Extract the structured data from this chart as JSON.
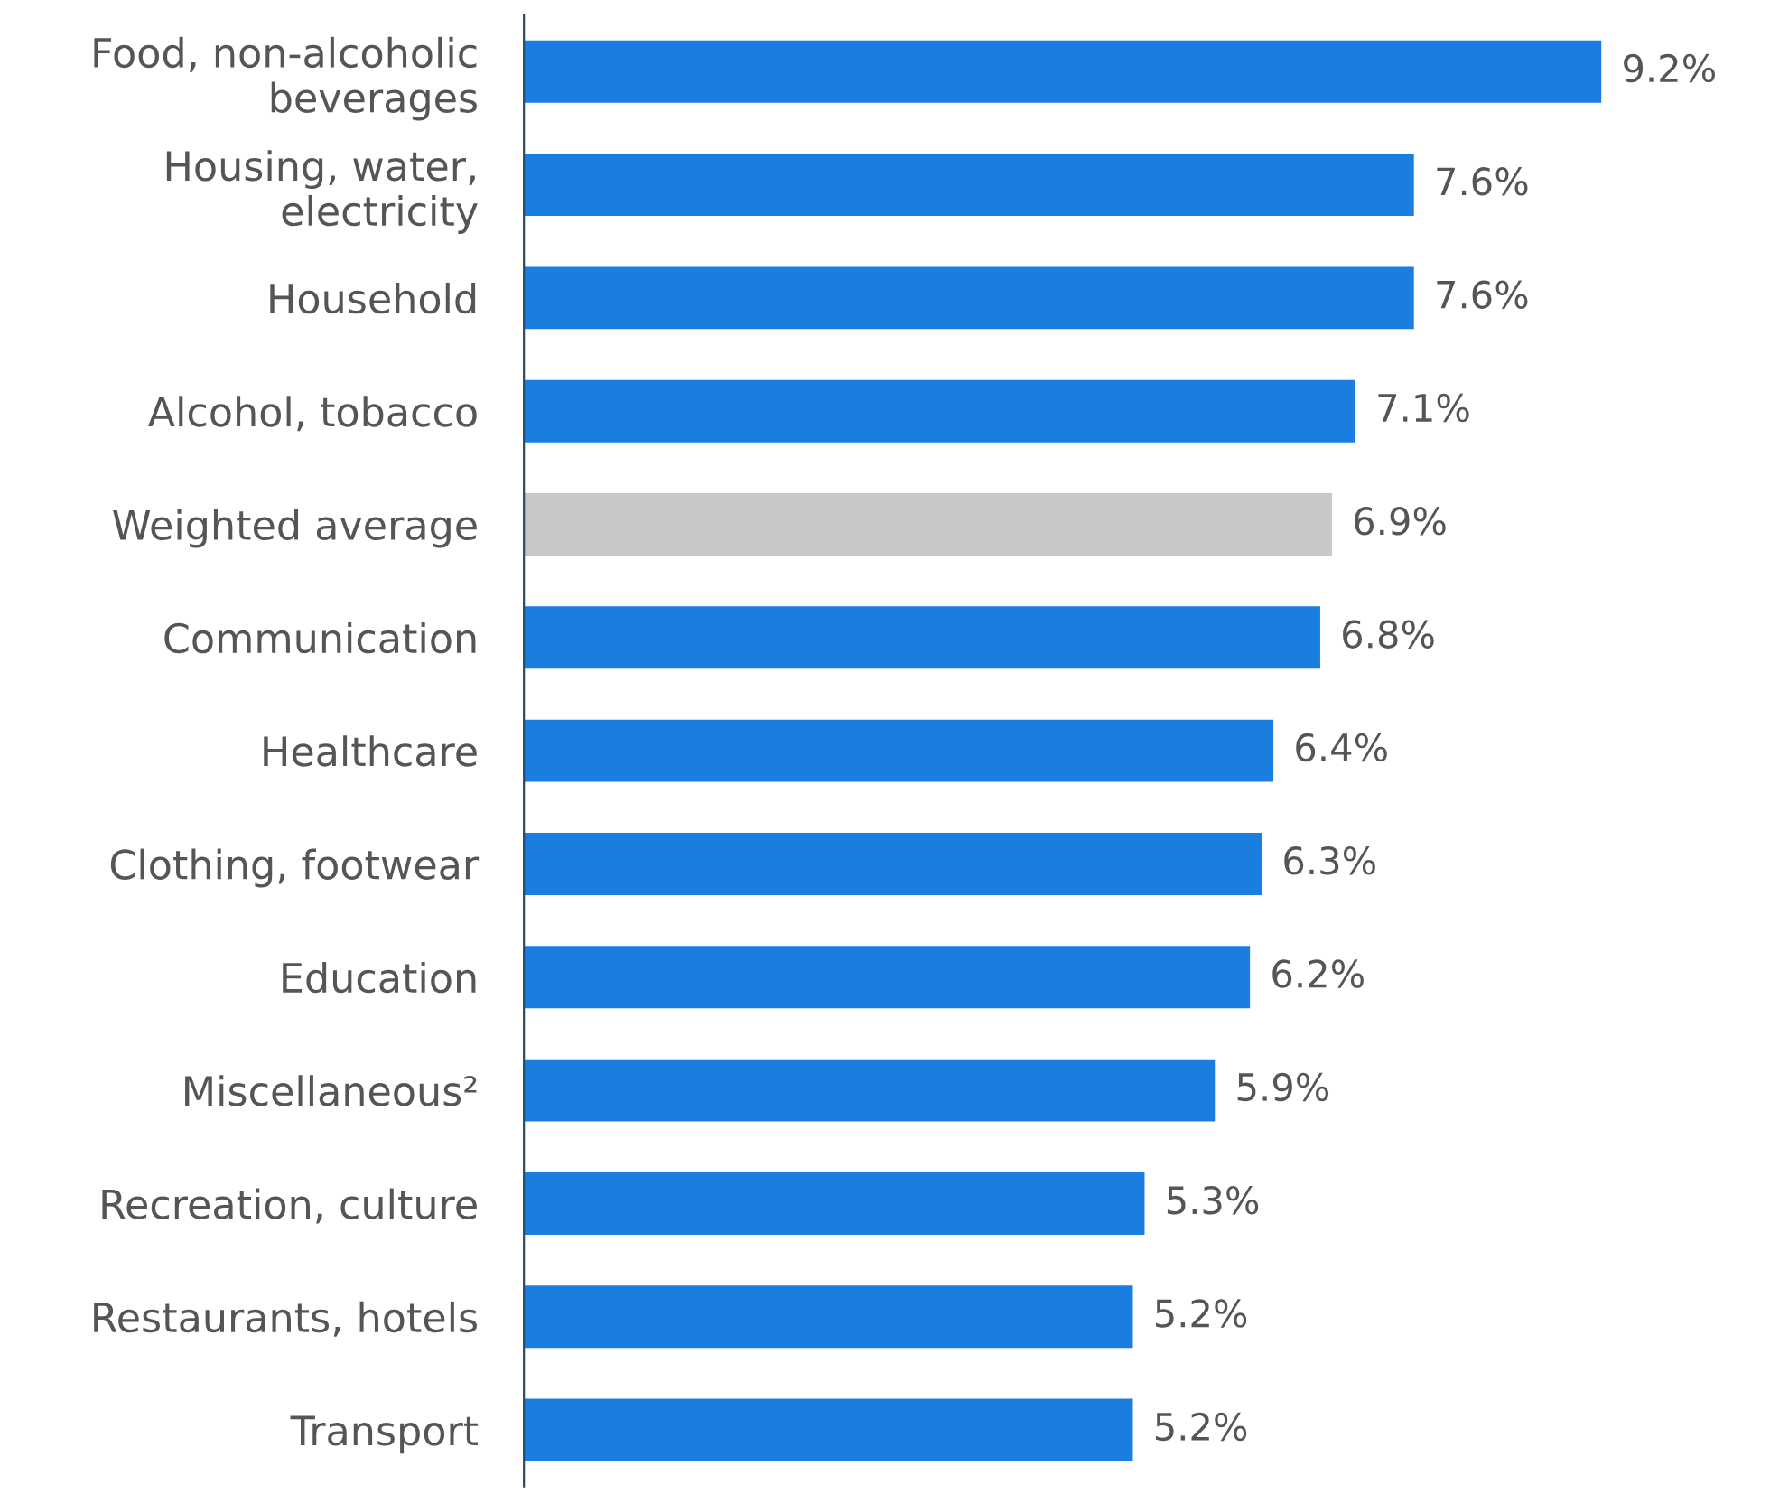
{
  "chart_data": {
    "type": "bar",
    "orientation": "horizontal",
    "categories": [
      "Food, non-alcoholic\nbeverages",
      "Housing, water,\nelectricity",
      "Household",
      "Alcohol, tobacco",
      "Weighted average",
      "Communication",
      "Healthcare",
      "Clothing, footwear",
      "Education",
      "Miscellaneous²",
      "Recreation, culture",
      "Restaurants, hotels",
      "Transport"
    ],
    "values": [
      9.2,
      7.6,
      7.6,
      7.1,
      6.9,
      6.8,
      6.4,
      6.3,
      6.2,
      5.9,
      5.3,
      5.2,
      5.2
    ],
    "value_labels": [
      "9.2%",
      "7.6%",
      "7.6%",
      "7.1%",
      "6.9%",
      "6.8%",
      "6.4%",
      "6.3%",
      "6.2%",
      "5.9%",
      "5.3%",
      "5.2%",
      "5.2%"
    ],
    "colors": [
      "#1a7ee0",
      "#1a7ee0",
      "#1a7ee0",
      "#1a7ee0",
      "#c8c8c8",
      "#1a7ee0",
      "#1a7ee0",
      "#1a7ee0",
      "#1a7ee0",
      "#1a7ee0",
      "#1a7ee0",
      "#1a7ee0",
      "#1a7ee0"
    ],
    "grid": false,
    "legend": false
  }
}
